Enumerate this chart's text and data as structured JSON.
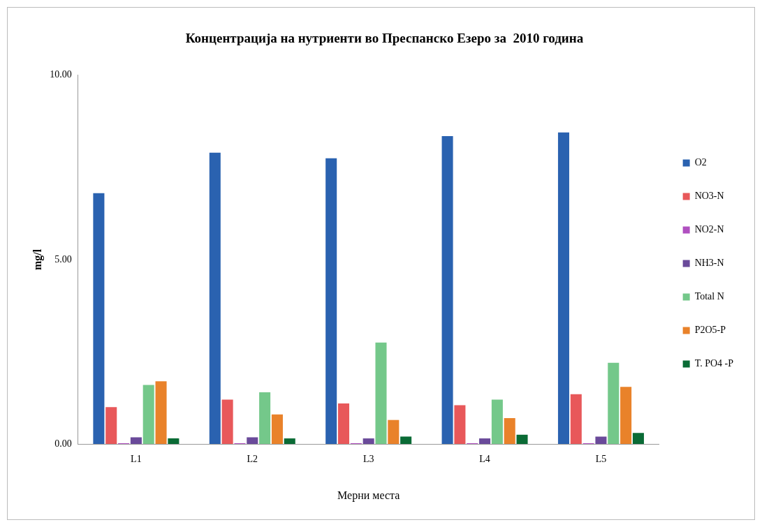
{
  "chart_data": {
    "type": "bar",
    "title": "Концентрација на нутриенти во Преспанско Езеро за  2010 година",
    "xlabel": "Мерни места",
    "ylabel": "mg/l",
    "categories": [
      "L1",
      "L2",
      "L3",
      "L4",
      "L5"
    ],
    "series": [
      {
        "name": "O2",
        "color": "#2a62b0",
        "values": [
          6.8,
          7.9,
          7.75,
          8.35,
          8.45
        ]
      },
      {
        "name": "NO3-N",
        "color": "#e8585a",
        "values": [
          1.0,
          1.2,
          1.1,
          1.05,
          1.35
        ]
      },
      {
        "name": "NO2-N",
        "color": "#b050c0",
        "values": [
          0.02,
          0.02,
          0.02,
          0.02,
          0.02
        ]
      },
      {
        "name": "NH3-N",
        "color": "#6a4a9a",
        "values": [
          0.18,
          0.18,
          0.15,
          0.15,
          0.2
        ]
      },
      {
        "name": "Total N",
        "color": "#74c88a",
        "values": [
          1.6,
          1.4,
          2.75,
          1.2,
          2.2
        ]
      },
      {
        "name": "P2O5-P",
        "color": "#e9822a",
        "values": [
          1.7,
          0.8,
          0.65,
          0.7,
          1.55
        ]
      },
      {
        "name": "T. PO4 -P",
        "color": "#0a6b35",
        "values": [
          0.15,
          0.15,
          0.2,
          0.25,
          0.3
        ]
      }
    ],
    "ylim": [
      0,
      10
    ],
    "yticks": [
      {
        "value": 0,
        "label": "0.00"
      },
      {
        "value": 5,
        "label": "5.00"
      },
      {
        "value": 10,
        "label": "10.00"
      }
    ],
    "grid": false,
    "legend": "right"
  }
}
